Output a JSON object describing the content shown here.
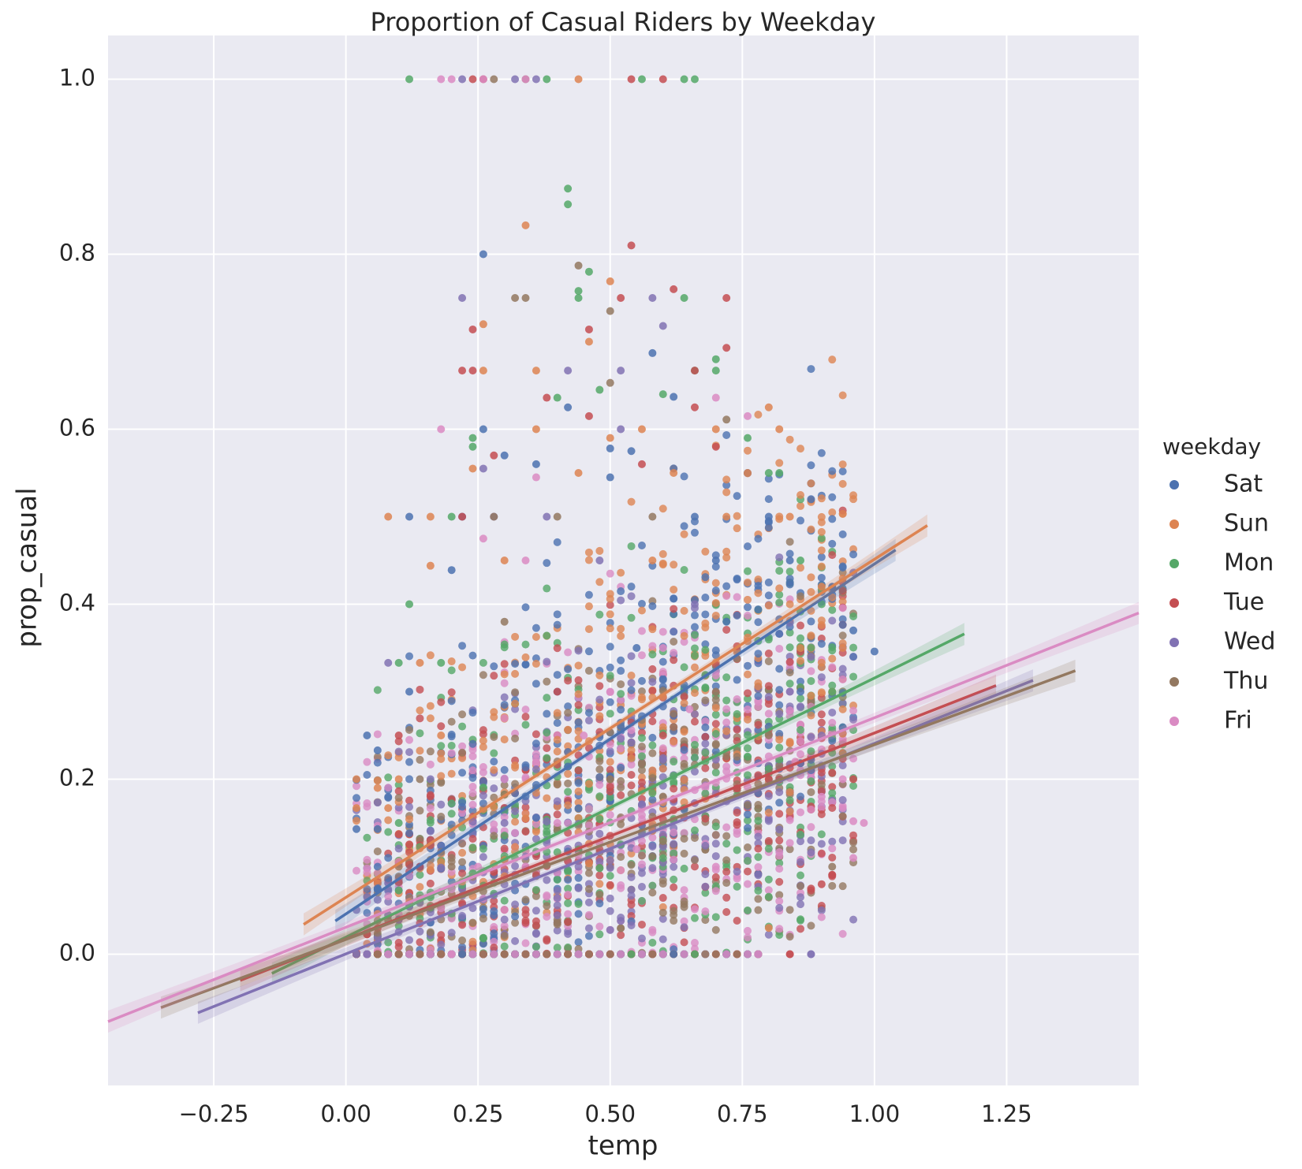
{
  "chart_data": {
    "type": "scatter",
    "title": "Proportion of Casual Riders by Weekday",
    "xlabel": "temp",
    "ylabel": "prop_casual",
    "xlim": [
      -0.45,
      1.5
    ],
    "ylim": [
      -0.15,
      1.05
    ],
    "xticks": [
      "−0.25",
      "0.00",
      "0.25",
      "0.50",
      "0.75",
      "1.00",
      "1.25"
    ],
    "xtick_values": [
      -0.25,
      0.0,
      0.25,
      0.5,
      0.75,
      1.0,
      1.25
    ],
    "yticks": [
      "0.0",
      "0.2",
      "0.4",
      "0.6",
      "0.8",
      "1.0"
    ],
    "ytick_values": [
      0.0,
      0.2,
      0.4,
      0.6,
      0.8,
      1.0
    ],
    "grid": true,
    "legend": {
      "title": "weekday",
      "placement": "right",
      "entries": [
        "Sat",
        "Sun",
        "Mon",
        "Tue",
        "Wed",
        "Thu",
        "Fri"
      ]
    },
    "colors": {
      "Sat": "#4c72b0",
      "Sun": "#dd8452",
      "Mon": "#55a868",
      "Tue": "#c44e52",
      "Wed": "#8172b3",
      "Thu": "#937860",
      "Fri": "#da8bc3"
    },
    "series": [
      {
        "name": "Sat",
        "regression": {
          "x": [
            -0.02,
            1.04
          ],
          "y": [
            0.038,
            0.462
          ]
        },
        "points": [
          [
            0.04,
            0.25
          ],
          [
            0.06,
            0.233
          ],
          [
            0.02,
            0.143
          ],
          [
            0.06,
            0.143
          ],
          [
            0.12,
            0.5
          ],
          [
            0.12,
            0.3
          ],
          [
            0.2,
            0.439
          ],
          [
            0.22,
            0.5
          ],
          [
            0.26,
            0.8
          ],
          [
            0.26,
            0.6
          ],
          [
            0.3,
            0.57
          ],
          [
            0.36,
            0.56
          ],
          [
            0.42,
            0.625
          ],
          [
            0.5,
            0.578
          ],
          [
            0.5,
            0.545
          ],
          [
            0.54,
            0.575
          ],
          [
            0.58,
            0.687
          ],
          [
            0.62,
            0.637
          ],
          [
            0.66,
            0.5
          ],
          [
            0.7,
            0.45
          ],
          [
            0.76,
            0.55
          ],
          [
            0.8,
            0.5
          ],
          [
            0.84,
            0.45
          ],
          [
            0.88,
            0.52
          ],
          [
            0.92,
            0.42
          ],
          [
            0.96,
            0.37
          ],
          [
            1.0,
            0.346
          ],
          [
            0.96,
            0.34
          ],
          [
            0.14,
            0.1
          ],
          [
            0.3,
            0.2
          ],
          [
            0.4,
            0.3
          ],
          [
            0.55,
            0.35
          ],
          [
            0.72,
            0.38
          ],
          [
            0.86,
            0.3
          ],
          [
            0.22,
            0.0
          ],
          [
            0.62,
            0.0
          ],
          [
            0.06,
            0.1
          ]
        ]
      },
      {
        "name": "Sun",
        "regression": {
          "x": [
            -0.08,
            1.1
          ],
          "y": [
            0.034,
            0.49
          ]
        },
        "points": [
          [
            0.02,
            0.2
          ],
          [
            0.02,
            0.167
          ],
          [
            0.06,
            0.19
          ],
          [
            0.08,
            0.167
          ],
          [
            0.1,
            0.2
          ],
          [
            0.08,
            0.5
          ],
          [
            0.16,
            0.5
          ],
          [
            0.16,
            0.444
          ],
          [
            0.24,
            0.555
          ],
          [
            0.26,
            0.72
          ],
          [
            0.26,
            0.667
          ],
          [
            0.34,
            0.833
          ],
          [
            0.36,
            0.667
          ],
          [
            0.36,
            0.6
          ],
          [
            0.44,
            1.0
          ],
          [
            0.46,
            0.7
          ],
          [
            0.5,
            0.769
          ],
          [
            0.5,
            0.59
          ],
          [
            0.56,
            0.6
          ],
          [
            0.62,
            0.55
          ],
          [
            0.7,
            0.6
          ],
          [
            0.76,
            0.55
          ],
          [
            0.8,
            0.625
          ],
          [
            0.82,
            0.6
          ],
          [
            0.84,
            0.5
          ],
          [
            0.9,
            0.42
          ],
          [
            0.94,
            0.35
          ],
          [
            0.8,
            0.03
          ],
          [
            0.14,
            0.333
          ],
          [
            0.3,
            0.45
          ],
          [
            0.44,
            0.55
          ],
          [
            0.58,
            0.45
          ],
          [
            0.72,
            0.5
          ],
          [
            0.92,
            0.3
          ],
          [
            0.18,
            0.25
          ]
        ]
      },
      {
        "name": "Mon",
        "regression": {
          "x": [
            -0.14,
            1.17
          ],
          "y": [
            -0.022,
            0.366
          ]
        },
        "points": [
          [
            0.12,
            1.0
          ],
          [
            0.38,
            1.0
          ],
          [
            0.56,
            1.0
          ],
          [
            0.64,
            1.0
          ],
          [
            0.66,
            1.0
          ],
          [
            0.42,
            0.875
          ],
          [
            0.42,
            0.857
          ],
          [
            0.44,
            0.758
          ],
          [
            0.44,
            0.75
          ],
          [
            0.46,
            0.78
          ],
          [
            0.64,
            0.75
          ],
          [
            0.66,
            0.667
          ],
          [
            0.7,
            0.68
          ],
          [
            0.7,
            0.667
          ],
          [
            0.24,
            0.59
          ],
          [
            0.24,
            0.58
          ],
          [
            0.12,
            0.4
          ],
          [
            0.1,
            0.333
          ],
          [
            0.18,
            0.333
          ],
          [
            0.1,
            0.15
          ],
          [
            0.1,
            0.073
          ],
          [
            0.2,
            0.5
          ],
          [
            0.4,
            0.636
          ],
          [
            0.48,
            0.645
          ],
          [
            0.6,
            0.64
          ],
          [
            0.76,
            0.59
          ],
          [
            0.8,
            0.55
          ],
          [
            0.82,
            0.55
          ],
          [
            0.86,
            0.45
          ],
          [
            0.9,
            0.4
          ],
          [
            0.92,
            0.3
          ],
          [
            0.76,
            0.05
          ],
          [
            0.54,
            0.0
          ],
          [
            0.66,
            0.0
          ]
        ]
      },
      {
        "name": "Tue",
        "regression": {
          "x": [
            -0.2,
            1.23
          ],
          "y": [
            -0.03,
            0.307
          ]
        },
        "points": [
          [
            0.24,
            1.0
          ],
          [
            0.26,
            1.0
          ],
          [
            0.54,
            1.0
          ],
          [
            0.6,
            1.0
          ],
          [
            0.54,
            0.81
          ],
          [
            0.24,
            0.714
          ],
          [
            0.22,
            0.667
          ],
          [
            0.24,
            0.667
          ],
          [
            0.38,
            0.636
          ],
          [
            0.46,
            0.714
          ],
          [
            0.52,
            0.75
          ],
          [
            0.62,
            0.76
          ],
          [
            0.66,
            0.667
          ],
          [
            0.72,
            0.75
          ],
          [
            0.72,
            0.693
          ],
          [
            0.1,
            0.25
          ],
          [
            0.22,
            0.5
          ],
          [
            0.28,
            0.57
          ],
          [
            0.46,
            0.615
          ],
          [
            0.56,
            0.56
          ],
          [
            0.66,
            0.625
          ],
          [
            0.7,
            0.58
          ],
          [
            0.88,
            0.075
          ],
          [
            0.9,
            0.08
          ],
          [
            0.96,
            0.2
          ],
          [
            0.14,
            0.1
          ],
          [
            0.4,
            0.3
          ],
          [
            0.6,
            0.25
          ],
          [
            0.8,
            0.2
          ]
        ]
      },
      {
        "name": "Wed",
        "regression": {
          "x": [
            -0.28,
            1.3
          ],
          "y": [
            -0.067,
            0.313
          ]
        },
        "points": [
          [
            0.22,
            1.0
          ],
          [
            0.32,
            1.0
          ],
          [
            0.36,
            1.0
          ],
          [
            0.22,
            0.75
          ],
          [
            0.58,
            0.75
          ],
          [
            0.6,
            0.718
          ],
          [
            0.42,
            0.667
          ],
          [
            0.52,
            0.667
          ],
          [
            0.52,
            0.6
          ],
          [
            0.28,
            0.5
          ],
          [
            0.26,
            0.555
          ],
          [
            0.08,
            0.333
          ],
          [
            0.02,
            0.0
          ],
          [
            0.04,
            0.0
          ],
          [
            0.78,
            0.0
          ],
          [
            0.38,
            0.5
          ],
          [
            0.48,
            0.45
          ],
          [
            0.66,
            0.4
          ],
          [
            0.84,
            0.3
          ],
          [
            0.9,
            0.25
          ],
          [
            0.16,
            0.2
          ],
          [
            0.3,
            0.15
          ]
        ]
      },
      {
        "name": "Thu",
        "regression": {
          "x": [
            -0.35,
            1.38
          ],
          "y": [
            -0.061,
            0.324
          ]
        },
        "points": [
          [
            0.28,
            1.0
          ],
          [
            0.34,
            1.0
          ],
          [
            0.44,
            0.787
          ],
          [
            0.32,
            0.75
          ],
          [
            0.34,
            0.75
          ],
          [
            0.5,
            0.735
          ],
          [
            0.5,
            0.653
          ],
          [
            0.72,
            0.611
          ],
          [
            0.28,
            0.5
          ],
          [
            0.4,
            0.5
          ],
          [
            0.58,
            0.5
          ],
          [
            0.3,
            0.38
          ],
          [
            0.14,
            0.2
          ],
          [
            0.1,
            0.1
          ],
          [
            0.92,
            0.1
          ],
          [
            0.7,
            0.3
          ],
          [
            0.8,
            0.25
          ],
          [
            0.5,
            0.2
          ],
          [
            0.2,
            0.1
          ],
          [
            0.68,
            0.0
          ]
        ]
      },
      {
        "name": "Fri",
        "regression": {
          "x": [
            -0.45,
            1.5
          ],
          "y": [
            -0.077,
            0.39
          ]
        },
        "points": [
          [
            0.18,
            1.0
          ],
          [
            0.2,
            1.0
          ],
          [
            0.26,
            1.0
          ],
          [
            0.34,
            1.0
          ],
          [
            0.18,
            0.6
          ],
          [
            0.26,
            0.475
          ],
          [
            0.36,
            0.545
          ],
          [
            0.7,
            0.636
          ],
          [
            0.76,
            0.615
          ],
          [
            0.34,
            0.45
          ],
          [
            0.98,
            0.15
          ],
          [
            0.96,
            0.152
          ],
          [
            0.96,
            0.11
          ],
          [
            0.94,
            0.167
          ],
          [
            0.94,
            0.2
          ],
          [
            0.78,
            0.0
          ],
          [
            0.2,
            0.0
          ],
          [
            0.5,
            0.3
          ],
          [
            0.6,
            0.35
          ],
          [
            0.3,
            0.2
          ],
          [
            0.45,
            0.25
          ],
          [
            0.65,
            0.28
          ],
          [
            0.85,
            0.22
          ],
          [
            0.9,
            0.18
          ],
          [
            0.25,
            0.1
          ],
          [
            0.4,
            0.15
          ],
          [
            0.55,
            0.12
          ],
          [
            0.7,
            0.1
          ]
        ]
      }
    ]
  }
}
